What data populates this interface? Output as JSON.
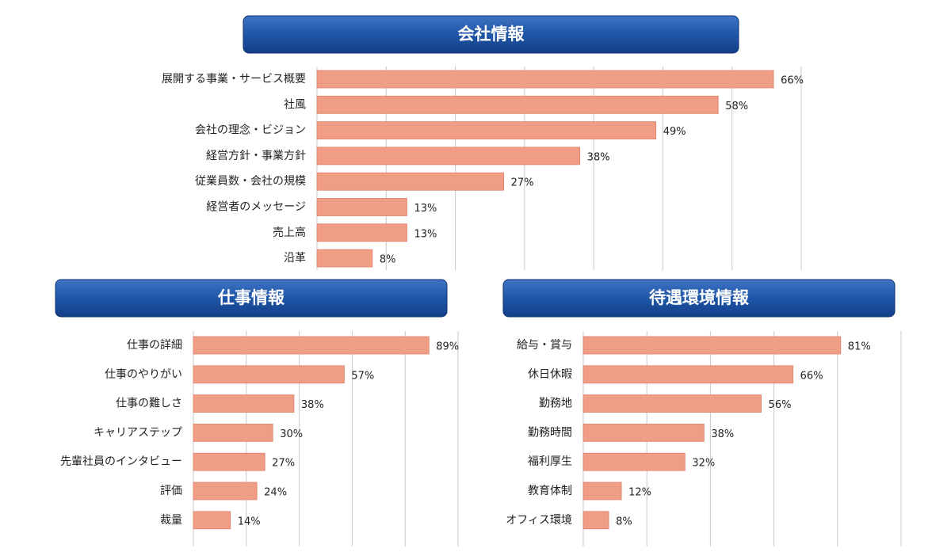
{
  "chart_data": [
    {
      "type": "bar",
      "title": "会社情報",
      "color": "#f09d86",
      "categories": [
        "展開する事業・サービス概要",
        "社風",
        "会社の理念・ビジョン",
        "経営方針・事業方針",
        "従業員数・会社の規模",
        "経営者のメッセージ",
        "売上高",
        "沿革"
      ],
      "values": [
        66,
        58,
        49,
        38,
        27,
        13,
        13,
        8
      ],
      "value_labels": [
        "66%",
        "58%",
        "49%",
        "38%",
        "27%",
        "13%",
        "13%",
        "8%"
      ],
      "xlim": [
        0,
        70
      ],
      "xticks": [
        0,
        10,
        20,
        30,
        40,
        50,
        60,
        70
      ],
      "grid": true
    },
    {
      "type": "bar",
      "title": "仕事情報",
      "color": "#f09d86",
      "categories": [
        "仕事の詳細",
        "仕事のやりがい",
        "仕事の難しさ",
        "キャリアステップ",
        "先輩社員のインタビュー",
        "評価",
        "裁量"
      ],
      "values": [
        89,
        57,
        38,
        30,
        27,
        24,
        14
      ],
      "value_labels": [
        "89%",
        "57%",
        "38%",
        "30%",
        "27%",
        "24%",
        "14%"
      ],
      "xlim": [
        0,
        100
      ],
      "xticks": [
        0,
        20,
        40,
        60,
        80,
        100
      ],
      "grid": true
    },
    {
      "type": "bar",
      "title": "待遇環境情報",
      "color": "#f09d86",
      "categories": [
        "給与・賞与",
        "休日休暇",
        "勤務地",
        "勤務時間",
        "福利厚生",
        "教育体制",
        "オフィス環境"
      ],
      "values": [
        81,
        66,
        56,
        38,
        32,
        12,
        8
      ],
      "value_labels": [
        "81%",
        "66%",
        "56%",
        "38%",
        "32%",
        "12%",
        "8%"
      ],
      "xlim": [
        0,
        100
      ],
      "xticks": [
        0,
        20,
        40,
        60,
        80,
        100
      ],
      "grid": true
    }
  ]
}
